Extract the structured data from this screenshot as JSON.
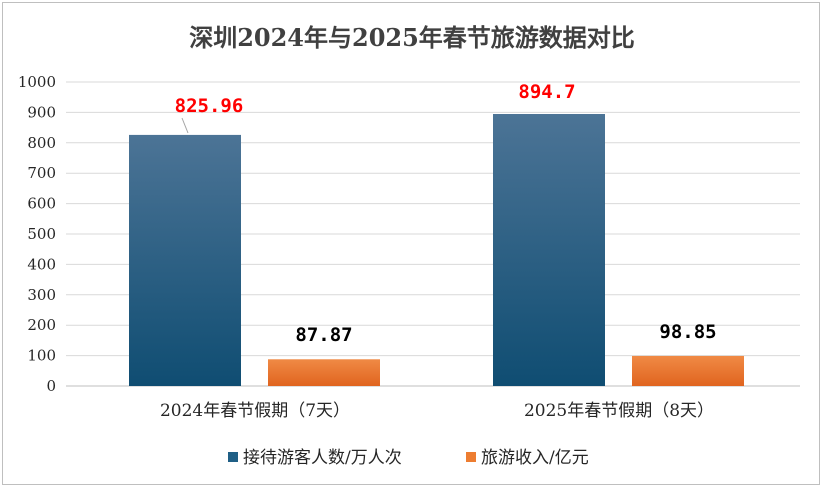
{
  "chart_data": {
    "type": "bar",
    "title": "深圳2024年与2025年春节旅游数据对比",
    "categories": [
      "2024年春节假期（7天）",
      "2025年春节假期（8天）"
    ],
    "series": [
      {
        "name": "接待游客人数/万人次",
        "values": [
          825.96,
          894.7
        ],
        "labels": [
          "825.96",
          "894.7"
        ],
        "color": "#1f5f86",
        "label_color": "#ff0000"
      },
      {
        "name": "旅游收入/亿元",
        "values": [
          87.87,
          98.85
        ],
        "labels": [
          "87.87",
          "98.85"
        ],
        "color": "#ed7d31",
        "label_color": "#000000"
      }
    ],
    "ylim": [
      0,
      1000
    ],
    "yticks": [
      0,
      100,
      200,
      300,
      400,
      500,
      600,
      700,
      800,
      900,
      1000
    ],
    "grid": true,
    "legend_position": "bottom"
  }
}
